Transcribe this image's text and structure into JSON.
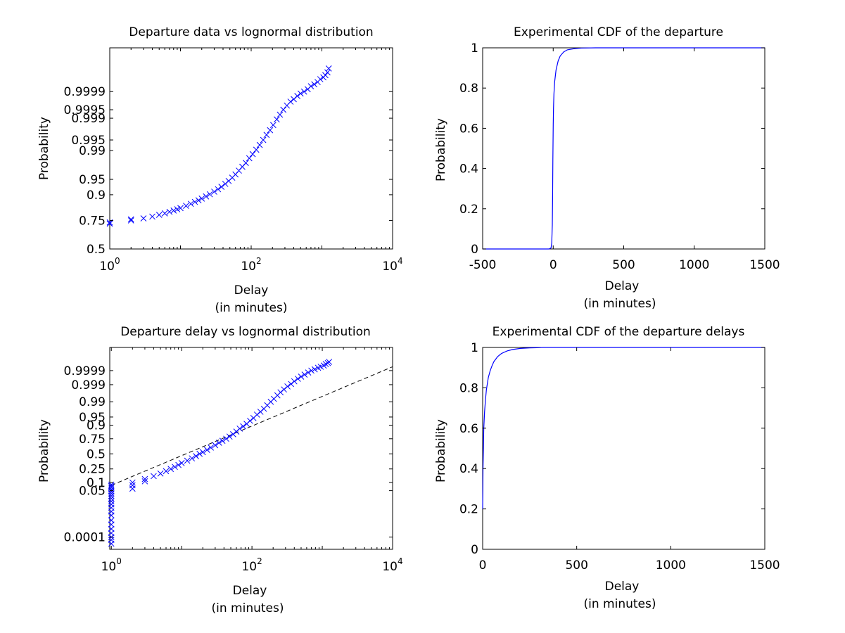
{
  "chart_data": [
    {
      "type": "scatter",
      "title": "Departure data vs lognormal distribution",
      "xlabel": [
        "Delay",
        "(in minutes)"
      ],
      "ylabel": "Probability",
      "xscale": "log",
      "xlim": [
        1,
        10000
      ],
      "xticks": [
        {
          "value": 1,
          "base": "10",
          "exp": "0"
        },
        {
          "value": 100,
          "base": "10",
          "exp": "2"
        },
        {
          "value": 10000,
          "base": "10",
          "exp": "4"
        }
      ],
      "yscale": "probability (normal)",
      "ylim": [
        0.5,
        0.999999
      ],
      "yticks": [
        "0.5",
        "0.75",
        "0.9",
        "0.95",
        "0.99",
        "0.995",
        "0.999",
        "0.9995",
        "0.9999"
      ],
      "ytick_values": [
        0.5,
        0.75,
        0.9,
        0.95,
        0.99,
        0.995,
        0.999,
        0.9995,
        0.9999
      ],
      "marker": "x",
      "color": "#0000ff",
      "series": [
        {
          "x": [
            1,
            1,
            2,
            2,
            3,
            4,
            5,
            6,
            7,
            8,
            9,
            10,
            12,
            14,
            16,
            18,
            20,
            23,
            26,
            30,
            34,
            38,
            43,
            48,
            54,
            60,
            67,
            75,
            84,
            94,
            105,
            118,
            132,
            148,
            165,
            185,
            205,
            230,
            255,
            285,
            320,
            360,
            400,
            450,
            500,
            560,
            630,
            700,
            780,
            870,
            950,
            1050,
            1120,
            1200,
            1250
          ],
          "y": [
            0.725,
            0.735,
            0.75,
            0.758,
            0.765,
            0.778,
            0.79,
            0.8,
            0.81,
            0.818,
            0.826,
            0.833,
            0.846,
            0.857,
            0.867,
            0.875,
            0.883,
            0.893,
            0.902,
            0.912,
            0.921,
            0.929,
            0.938,
            0.946,
            0.954,
            0.961,
            0.968,
            0.974,
            0.979,
            0.984,
            0.9875,
            0.9905,
            0.993,
            0.995,
            0.9965,
            0.9975,
            0.9983,
            0.9989,
            0.99925,
            0.9995,
            0.99965,
            0.99975,
            0.9998,
            0.99985,
            0.99988,
            0.9999,
            0.99992,
            0.99994,
            0.99995,
            0.99996,
            0.99997,
            0.999975,
            0.99998,
            0.999985,
            0.99999
          ]
        }
      ]
    },
    {
      "type": "line",
      "title": "Experimental CDF of the departure",
      "xlabel": [
        "Delay",
        "(in minutes)"
      ],
      "ylabel": "Probability",
      "xlim": [
        -500,
        1500
      ],
      "xticks": [
        "-500",
        "0",
        "500",
        "1000",
        "1500"
      ],
      "xtick_values": [
        -500,
        0,
        500,
        1000,
        1500
      ],
      "ylim": [
        0,
        1
      ],
      "yticks": [
        "0",
        "0.2",
        "0.4",
        "0.6",
        "0.8",
        "1"
      ],
      "ytick_values": [
        0,
        0.2,
        0.4,
        0.6,
        0.8,
        1
      ],
      "color": "#0000ff",
      "series": [
        {
          "x": [
            -500,
            -30,
            -15,
            -10,
            -6,
            -4,
            -2,
            0,
            2,
            5,
            10,
            20,
            35,
            50,
            75,
            100,
            150,
            200,
            300,
            500,
            1000,
            1500
          ],
          "y": [
            0,
            0,
            0.005,
            0.03,
            0.12,
            0.25,
            0.45,
            0.62,
            0.7,
            0.77,
            0.83,
            0.89,
            0.935,
            0.96,
            0.98,
            0.99,
            0.996,
            0.999,
            1,
            1,
            1,
            1
          ]
        }
      ]
    },
    {
      "type": "scatter",
      "title": "Departure delay vs lognormal distribution",
      "xlabel": [
        "Delay",
        "(in minutes)"
      ],
      "ylabel": "Probability",
      "xscale": "log",
      "xlim": [
        0.95,
        10000
      ],
      "xticks": [
        {
          "value": 1,
          "base": "10",
          "exp": "0"
        },
        {
          "value": 100,
          "base": "10",
          "exp": "2"
        },
        {
          "value": 10000,
          "base": "10",
          "exp": "4"
        }
      ],
      "yscale": "probability (normal)",
      "ylim": [
        1e-05,
        0.999999
      ],
      "yticks": [
        "0.0001",
        "0.05",
        "0.1",
        "0.25",
        "0.5",
        "0.75",
        "0.9",
        "0.95",
        "0.99",
        "0.999",
        "0.9999"
      ],
      "ytick_values": [
        0.0001,
        0.05,
        0.1,
        0.25,
        0.5,
        0.75,
        0.9,
        0.95,
        0.99,
        0.999,
        0.9999
      ],
      "marker": "x",
      "color": "#0000ff",
      "reference_line": {
        "style": "dashed",
        "color": "#000000",
        "x": [
          1,
          10000
        ],
        "y": [
          0.08,
          0.99995
        ]
      },
      "series": [
        {
          "x": [
            1,
            1,
            1,
            1,
            1,
            1,
            1,
            1,
            1,
            1,
            1,
            1,
            1,
            1,
            1,
            1,
            1,
            1,
            1,
            1,
            2,
            2,
            2,
            3,
            3,
            4,
            5,
            6,
            7,
            8,
            9,
            10,
            12,
            14,
            16,
            18,
            20,
            23,
            26,
            30,
            34,
            38,
            43,
            48,
            54,
            60,
            67,
            75,
            84,
            94,
            105,
            118,
            132,
            148,
            165,
            185,
            205,
            230,
            255,
            285,
            320,
            360,
            400,
            450,
            500,
            560,
            630,
            700,
            780,
            870,
            950,
            1050,
            1120,
            1200,
            1250
          ],
          "y": [
            3e-05,
            6e-05,
            0.0001,
            0.0002,
            0.0004,
            0.0008,
            0.0015,
            0.003,
            0.005,
            0.008,
            0.012,
            0.017,
            0.023,
            0.03,
            0.038,
            0.046,
            0.055,
            0.065,
            0.075,
            0.085,
            0.06,
            0.08,
            0.1,
            0.11,
            0.13,
            0.16,
            0.19,
            0.22,
            0.25,
            0.28,
            0.31,
            0.34,
            0.38,
            0.42,
            0.46,
            0.5,
            0.53,
            0.57,
            0.61,
            0.65,
            0.69,
            0.72,
            0.75,
            0.78,
            0.81,
            0.84,
            0.87,
            0.89,
            0.91,
            0.93,
            0.945,
            0.96,
            0.97,
            0.978,
            0.985,
            0.99,
            0.993,
            0.9955,
            0.997,
            0.998,
            0.9987,
            0.9991,
            0.9994,
            0.9996,
            0.99972,
            0.9998,
            0.99986,
            0.9999,
            0.99992,
            0.99994,
            0.99995,
            0.99996,
            0.99997,
            0.999975,
            0.99998
          ]
        }
      ]
    },
    {
      "type": "line",
      "title": "Experimental CDF of the departure delays",
      "xlabel": [
        "Delay",
        "(in minutes)"
      ],
      "ylabel": "Probability",
      "xlim": [
        0,
        1500
      ],
      "xticks": [
        "0",
        "500",
        "1000",
        "1500"
      ],
      "xtick_values": [
        0,
        500,
        1000,
        1500
      ],
      "ylim": [
        0,
        1
      ],
      "yticks": [
        "0",
        "0.2",
        "0.4",
        "0.6",
        "0.8",
        "1"
      ],
      "ytick_values": [
        0,
        0.2,
        0.4,
        0.6,
        0.8,
        1
      ],
      "color": "#0000ff",
      "series": [
        {
          "x": [
            0,
            1,
            2,
            4,
            6,
            10,
            15,
            20,
            30,
            40,
            50,
            60,
            80,
            100,
            130,
            160,
            200,
            250,
            300,
            320,
            1500
          ],
          "y": [
            0.2,
            0.3,
            0.4,
            0.5,
            0.6,
            0.68,
            0.74,
            0.79,
            0.85,
            0.885,
            0.91,
            0.93,
            0.955,
            0.97,
            0.983,
            0.99,
            0.995,
            0.998,
            0.999,
            1,
            1
          ]
        }
      ]
    }
  ]
}
